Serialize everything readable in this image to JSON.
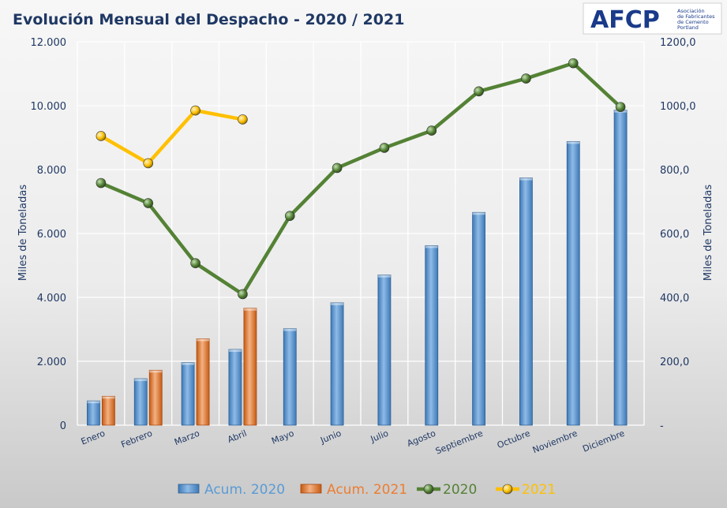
{
  "logo": {
    "text": "AFCP",
    "lines": [
      "Asociación",
      "de Fabricantes",
      "de Cemento",
      "Portland"
    ]
  },
  "colors": {
    "acum2020": "#5b9bd5",
    "acum2021": "#ed7d31",
    "line2020": "#548235",
    "line2021": "#ffc000",
    "text": "#1f3864"
  },
  "chart_data": {
    "type": "bar",
    "title": "Evolución Mensual del Despacho - 2020 / 2021",
    "categories": [
      "Enero",
      "Febrero",
      "Marzo",
      "Abril",
      "Mayo",
      "Junio",
      "Julio",
      "Agosto",
      "Septiembre",
      "Octubre",
      "Noviembre",
      "Diciembre"
    ],
    "ylabel": "Miles de Toneladas",
    "y2label": "Miles de Toneladas",
    "ylim": [
      0,
      12000
    ],
    "y2lim": [
      0,
      1200
    ],
    "yticks": [
      "0",
      "2.000",
      "4.000",
      "6.000",
      "8.000",
      "10.000",
      "12.000"
    ],
    "y2ticks": [
      "-",
      "200,0",
      "400,0",
      "600,0",
      "800,0",
      "1000,0",
      "1200,0"
    ],
    "grid": true,
    "legend": "bottom",
    "series": [
      {
        "name": "Acum. 2020",
        "type": "bar",
        "axis": "left",
        "values": [
          760,
          1455,
          1960,
          2370,
          3020,
          3830,
          4700,
          5620,
          6660,
          7740,
          8880,
          9860
        ]
      },
      {
        "name": "Acum. 2021",
        "type": "bar",
        "axis": "left",
        "values": [
          905,
          1720,
          2705,
          3660,
          null,
          null,
          null,
          null,
          null,
          null,
          null,
          null
        ]
      },
      {
        "name": "2020",
        "type": "line",
        "axis": "right",
        "values": [
          758,
          695,
          507,
          410,
          655,
          805,
          868,
          922,
          1045,
          1085,
          1133,
          996
        ]
      },
      {
        "name": "2021",
        "type": "line",
        "axis": "right",
        "values": [
          905,
          820,
          985,
          957,
          null,
          null,
          null,
          null,
          null,
          null,
          null,
          null
        ]
      }
    ]
  }
}
